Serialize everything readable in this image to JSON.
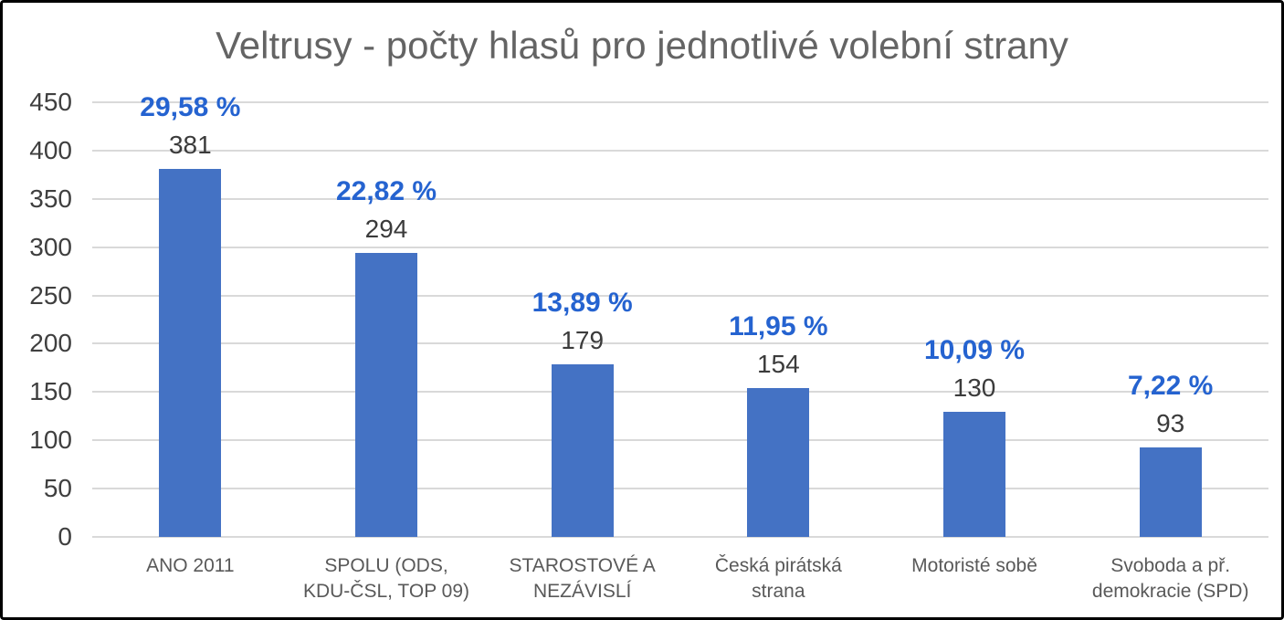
{
  "title": "Veltrusy - počty hlasů pro jednotlivé volební strany",
  "chart_data": {
    "type": "bar",
    "title": "Veltrusy - počty hlasů pro jednotlivé volební strany",
    "categories": [
      "ANO 2011",
      "SPOLU (ODS, KDU-ČSL, TOP 09)",
      "STAROSTOVÉ A NEZÁVISLÍ",
      "Česká pirátská strana",
      "Motoristé sobě",
      "Svoboda a př. demokracie (SPD)"
    ],
    "values": [
      381,
      294,
      179,
      154,
      130,
      93
    ],
    "percent_labels": [
      "29,58 %",
      "22,82 %",
      "13,89 %",
      "11,95 %",
      "10,09 %",
      "7,22 %"
    ],
    "xlabel": "",
    "ylabel": "",
    "ylim": [
      0,
      450
    ],
    "yticks": [
      0,
      50,
      100,
      150,
      200,
      250,
      300,
      350,
      400,
      450
    ],
    "grid": true,
    "legend": "none"
  },
  "colors": {
    "bar": "#4472C4",
    "percent_label": "#2563D0",
    "count_label": "#3B3B3B",
    "ytick_label": "#3F3F3F",
    "category_label": "#595959",
    "title": "#646464",
    "gridline": "#D9D9D9",
    "border": "#000000",
    "background": "#FFFFFF"
  }
}
